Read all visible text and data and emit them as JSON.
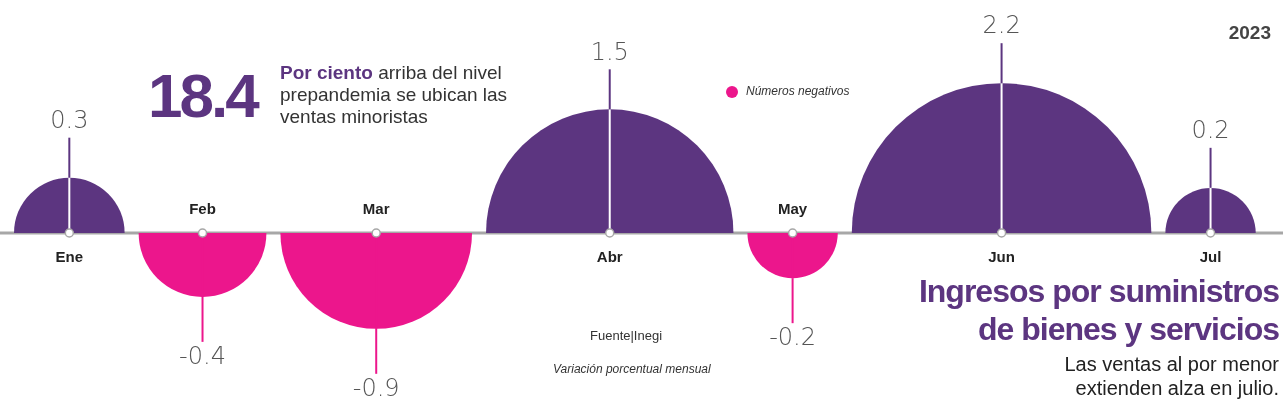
{
  "chart_data": {
    "type": "other",
    "title": "Ingresos por suministros de bienes y servicios",
    "subtitle": "Las ventas al por menor extienden alza en julio.",
    "categories": [
      "Ene",
      "Feb",
      "Mar",
      "Abr",
      "May",
      "Jun",
      "Jul"
    ],
    "values": [
      0.3,
      -0.4,
      -0.9,
      1.5,
      -0.2,
      2.2,
      0.2
    ],
    "colors": [
      "#5c3580",
      "#ec168c",
      "#ec168c",
      "#5c3580",
      "#ec168c",
      "#5c3580",
      "#5c3580"
    ],
    "data_labels": true,
    "annotations": [
      "2023",
      "18.4",
      "Por ciento",
      "arriba del nivel prepandemia se ubican las ventas minoristas",
      "Números negativos",
      "Fuente|Inegi",
      "Variación porcentual mensual"
    ]
  }
}
